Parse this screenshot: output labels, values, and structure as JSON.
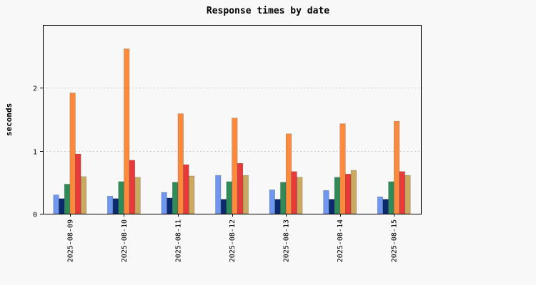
{
  "chart_data": {
    "type": "bar",
    "title": "Response times by date",
    "xlabel": "",
    "ylabel": "seconds",
    "ylim": [
      0,
      3
    ],
    "yticks": [
      0,
      1,
      2
    ],
    "grid": true,
    "legend": "none",
    "categories": [
      "2025-08-09",
      "2025-08-10",
      "2025-08-11",
      "2025-08-12",
      "2025-08-13",
      "2025-08-14",
      "2025-08-15"
    ],
    "series": [
      {
        "color": "#6f97ef",
        "values": [
          0.3,
          0.28,
          0.34,
          0.61,
          0.38,
          0.37,
          0.27
        ]
      },
      {
        "color": "#0b2a6e",
        "values": [
          0.24,
          0.24,
          0.25,
          0.23,
          0.23,
          0.23,
          0.23
        ]
      },
      {
        "color": "#2f8b57",
        "values": [
          0.47,
          0.51,
          0.5,
          0.51,
          0.5,
          0.58,
          0.51
        ]
      },
      {
        "color": "#ff8a3d",
        "values": [
          1.92,
          2.62,
          1.59,
          1.52,
          1.27,
          1.43,
          1.47
        ]
      },
      {
        "color": "#e83a3a",
        "values": [
          0.95,
          0.85,
          0.78,
          0.8,
          0.67,
          0.63,
          0.67
        ]
      },
      {
        "color": "#c9aa5f",
        "values": [
          0.59,
          0.58,
          0.6,
          0.61,
          0.58,
          0.69,
          0.61
        ]
      }
    ]
  }
}
